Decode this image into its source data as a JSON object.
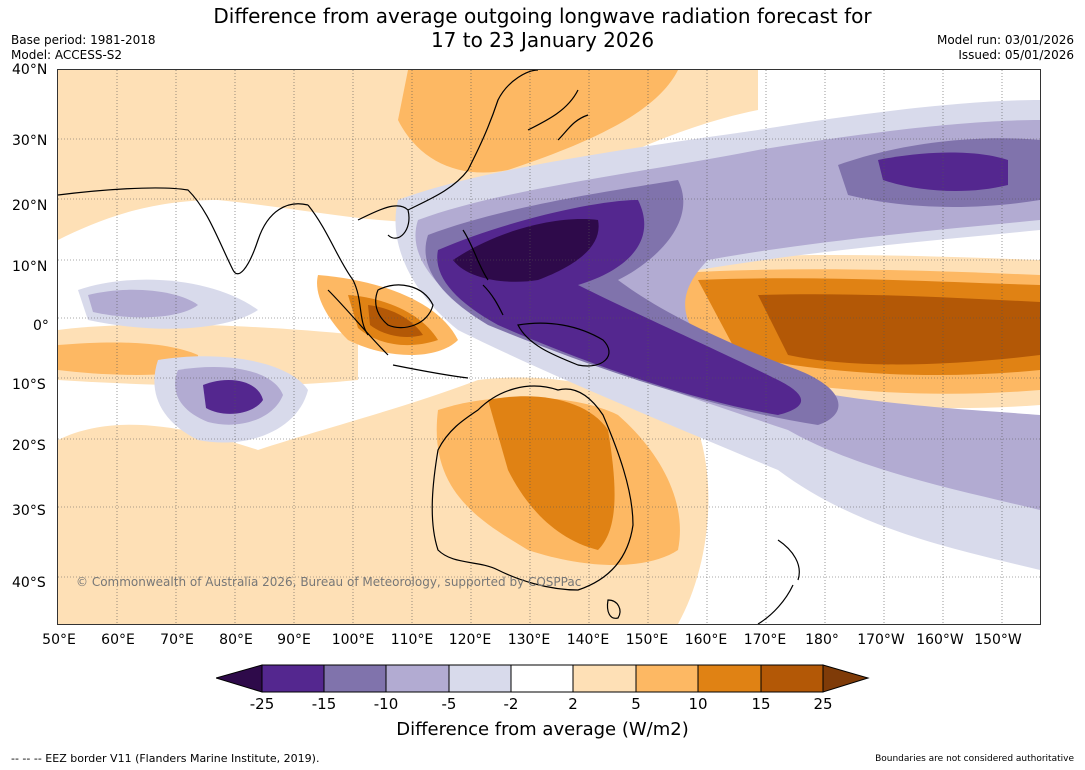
{
  "title_line1": "Difference from average outgoing longwave radiation forecast for",
  "title_line2": "17 to 23 January 2026",
  "meta": {
    "base_period": "Base period: 1981-2018",
    "model": "Model: ACCESS-S2",
    "model_run": "Model run: 03/01/2026",
    "issued": "Issued: 05/01/2026"
  },
  "lat_labels": [
    "40°N",
    "30°N",
    "20°N",
    "10°N",
    "0°",
    "10°S",
    "20°S",
    "30°S",
    "40°S"
  ],
  "lon_labels": [
    "50°E",
    "60°E",
    "70°E",
    "80°E",
    "90°E",
    "100°E",
    "110°E",
    "120°E",
    "130°E",
    "140°E",
    "150°E",
    "160°E",
    "170°E",
    "180°",
    "170°W",
    "160°W",
    "150°W"
  ],
  "copyright": "© Commonwealth of Australia 2026, Bureau of Meteorology, supported by COSPPac",
  "colorbar": {
    "ticks": [
      "-25",
      "-15",
      "-10",
      "-5",
      "-2",
      "2",
      "5",
      "10",
      "15",
      "25"
    ],
    "colors": {
      "below_min": "#2e0a4a",
      "m25_m15": "#54278f",
      "m15_m10": "#8073ac",
      "m10_m5": "#b2abd2",
      "m5_m2": "#d8daeb",
      "m2_p2": "#ffffff",
      "p2_p5": "#fee0b6",
      "p5_p10": "#fdb863",
      "p10_p15": "#e08214",
      "p15_p25": "#b35806",
      "above_max": "#7f3b08"
    },
    "label": "Difference from average (W/m2)"
  },
  "footer": {
    "eez": "--  --  -- EEZ border V11 (Flanders Marine Institute, 2019).",
    "disclaimer": "Boundaries are not considered authoritative"
  }
}
